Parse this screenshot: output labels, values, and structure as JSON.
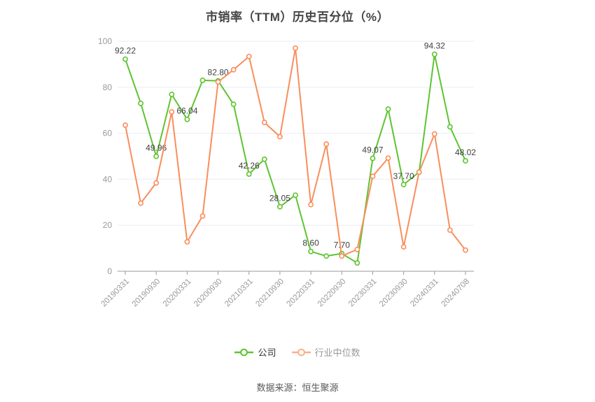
{
  "chart_data": {
    "type": "line",
    "title": "市销率（TTM）历史百分位（%）",
    "x_tick_labels": [
      "20190331",
      "20190930",
      "20200331",
      "20200930",
      "20210331",
      "20210930",
      "20220331",
      "20220930",
      "20230331",
      "20230930",
      "20240331",
      "20240708"
    ],
    "points_per_tick": 2,
    "ylim": [
      0,
      100
    ],
    "y_ticks": [
      0,
      20,
      40,
      60,
      80,
      100
    ],
    "grid": true,
    "legend_position": "bottom",
    "series": [
      {
        "name": "公司",
        "color": "#5ec431",
        "values": [
          92.22,
          73.0,
          49.96,
          76.9,
          66.04,
          83.0,
          82.8,
          72.6,
          42.26,
          48.7,
          28.05,
          33.1,
          8.6,
          6.6,
          7.7,
          3.6,
          49.07,
          70.5,
          37.7,
          43.1,
          94.32,
          62.8,
          48.02
        ],
        "point_labels": [
          {
            "index": 0,
            "text": "92.22"
          },
          {
            "index": 2,
            "text": "49.96"
          },
          {
            "index": 4,
            "text": "66.04"
          },
          {
            "index": 6,
            "text": "82.80"
          },
          {
            "index": 8,
            "text": "42.26"
          },
          {
            "index": 10,
            "text": "28.05"
          },
          {
            "index": 12,
            "text": "8.60"
          },
          {
            "index": 14,
            "text": "7.70"
          },
          {
            "index": 16,
            "text": "49.07"
          },
          {
            "index": 18,
            "text": "37.70"
          },
          {
            "index": 20,
            "text": "94.32"
          },
          {
            "index": 22,
            "text": "48.02"
          }
        ]
      },
      {
        "name": "行业中位数",
        "color": "#f98e5c",
        "values": [
          63.5,
          29.6,
          38.4,
          69.3,
          12.8,
          24.0,
          82.3,
          87.6,
          93.4,
          64.7,
          58.5,
          97.0,
          29.0,
          55.3,
          6.6,
          9.5,
          41.3,
          49.2,
          10.6,
          43.1,
          59.7,
          17.9,
          9.2
        ],
        "point_labels": []
      }
    ]
  },
  "legend": {
    "items": [
      {
        "key": "company",
        "label": "公司",
        "marker_color": "#5ec431",
        "text_color": "#333333"
      },
      {
        "key": "industry",
        "label": "行业中位数",
        "marker_color": "#f8b28b",
        "text_color": "#999999"
      }
    ]
  },
  "footer": {
    "source": "数据来源：恒生聚源"
  },
  "style": {
    "axis_color": "#999999",
    "tick_label_color": "#999999",
    "grid_color": "#e8edf4",
    "point_label_color": "#404040",
    "title_color": "#454545"
  }
}
